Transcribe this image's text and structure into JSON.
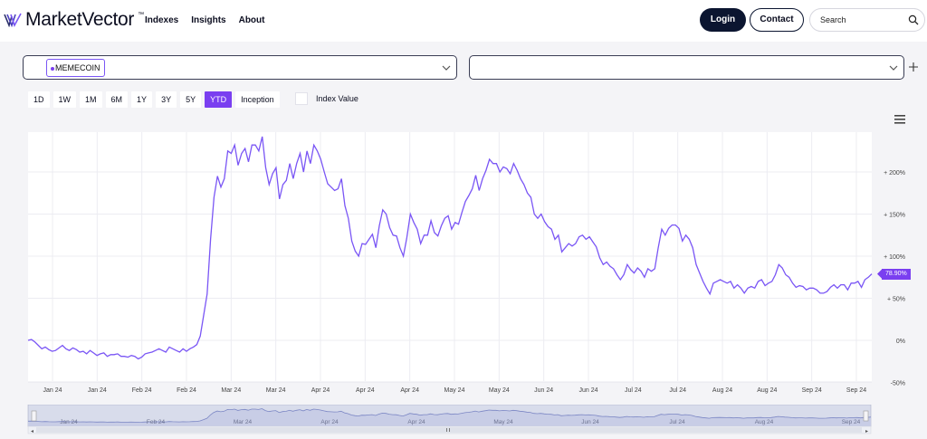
{
  "header": {
    "logo_text": "MarketVector",
    "logo_tm": "™",
    "nav": [
      "Indexes",
      "Insights",
      "About"
    ],
    "login_label": "Login",
    "contact_label": "Contact",
    "search_placeholder": "Search"
  },
  "selectors": {
    "primary_tag": "MEMECOIN",
    "secondary_value": ""
  },
  "ranges": {
    "buttons": [
      "1D",
      "1W",
      "1M",
      "6M",
      "1Y",
      "3Y",
      "5Y",
      "YTD",
      "Inception"
    ],
    "active": "YTD",
    "index_value_label": "Index Value"
  },
  "colors": {
    "accent": "#7a3ff0",
    "line": "#7a56f5"
  },
  "chart_data": {
    "type": "line",
    "series": [
      {
        "values": [
          0,
          1,
          -2,
          -6,
          -10,
          -8,
          -11,
          -13,
          -12,
          -9,
          -6,
          -10,
          -12,
          -9,
          -11,
          -14,
          -13,
          -16,
          -12,
          -15,
          -18,
          -16,
          -15,
          -19,
          -17,
          -17,
          -16,
          -19,
          -19,
          -20,
          -18,
          -19,
          -22,
          -20,
          -16,
          -15,
          -14,
          -12,
          -10,
          -12,
          -14,
          -8,
          -10,
          -12,
          -14,
          -10,
          -13,
          -10,
          -8,
          -5,
          5,
          30,
          55,
          120,
          170,
          195,
          182,
          192,
          225,
          222,
          232,
          208,
          222,
          228,
          212,
          232,
          232,
          225,
          242,
          205,
          185,
          198,
          205,
          168,
          185,
          190,
          210,
          192,
          210,
          222,
          200,
          225,
          210,
          232,
          225,
          215,
          200,
          186,
          182,
          178,
          180,
          192,
          160,
          145,
          118,
          106,
          100,
          115,
          114,
          120,
          126,
          110,
          136,
          155,
          150,
          134,
          125,
          124,
          110,
          100,
          122,
          150,
          140,
          132,
          115,
          125,
          125,
          142,
          128,
          124,
          136,
          145,
          148,
          132,
          140,
          138,
          152,
          165,
          172,
          180,
          196,
          178,
          192,
          202,
          215,
          210,
          210,
          200,
          206,
          204,
          198,
          210,
          202,
          192,
          185,
          175,
          170,
          150,
          145,
          150,
          141,
          135,
          132,
          120,
          125,
          105,
          110,
          115,
          112,
          115,
          123,
          125,
          120,
          123,
          117,
          111,
          98,
          90,
          93,
          88,
          85,
          78,
          72,
          78,
          90,
          84,
          80,
          86,
          82,
          75,
          85,
          82,
          85,
          110,
          132,
          125,
          133,
          137,
          137,
          133,
          118,
          125,
          120,
          110,
          90,
          80,
          70,
          62,
          55,
          68,
          70,
          72,
          70,
          68,
          70,
          62,
          66,
          62,
          56,
          62,
          64,
          62,
          70,
          72,
          65,
          68,
          70,
          78,
          90,
          86,
          78,
          75,
          68,
          63,
          65,
          64,
          60,
          62,
          62,
          60,
          56,
          56,
          58,
          63,
          66,
          62,
          66,
          66,
          60,
          68,
          68,
          70,
          63,
          72,
          75,
          78.9
        ]
      }
    ],
    "x_tick_labels": [
      "Jan 24",
      "Jan 24",
      "Feb 24",
      "Feb 24",
      "Mar 24",
      "Mar 24",
      "Apr 24",
      "Apr 24",
      "Apr 24",
      "May 24",
      "May 24",
      "Jun 24",
      "Jun 24",
      "Jul 24",
      "Jul 24",
      "Aug 24",
      "Aug 24",
      "Sep 24",
      "Sep 24"
    ],
    "y_ticks": [
      200,
      150,
      100,
      50,
      0,
      -50
    ],
    "y_tick_labels": [
      "+ 200%",
      "+ 150%",
      "+ 100%",
      "+ 50%",
      "0%",
      "-50%"
    ],
    "ylim": [
      -50,
      250
    ],
    "last_value_label": "78.90%",
    "navigator_labels": [
      "Jan 24",
      "Feb 24",
      "Mar 24",
      "Apr 24",
      "Apr 24",
      "May 24",
      "Jun 24",
      "Jul 24",
      "Aug 24",
      "Sep 24"
    ]
  }
}
